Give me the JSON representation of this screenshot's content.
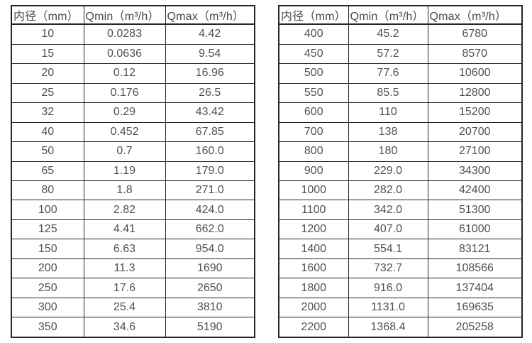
{
  "colors": {
    "background": "#ffffff",
    "border": "#262626",
    "header_text": "#48494e",
    "cell_text": "#505156"
  },
  "chart_data": [
    {
      "type": "table",
      "title": "",
      "columns": [
        "内径（mm）",
        "Qmin（m³/h）",
        "Qmax（m³/h）"
      ],
      "rows": [
        [
          "10",
          "0.0283",
          "4.42"
        ],
        [
          "15",
          "0.0636",
          "9.54"
        ],
        [
          "20",
          "0.12",
          "16.96"
        ],
        [
          "25",
          "0.176",
          "26.5"
        ],
        [
          "32",
          "0.29",
          "43.42"
        ],
        [
          "40",
          "0.452",
          "67.85"
        ],
        [
          "50",
          "0.7",
          "160.0"
        ],
        [
          "65",
          "1.19",
          "179.0"
        ],
        [
          "80",
          "1.8",
          "271.0"
        ],
        [
          "100",
          "2.82",
          "424.0"
        ],
        [
          "125",
          "4.41",
          "662.0"
        ],
        [
          "150",
          "6.63",
          "954.0"
        ],
        [
          "200",
          "11.3",
          "1690"
        ],
        [
          "250",
          "17.6",
          "2650"
        ],
        [
          "300",
          "25.4",
          "3810"
        ],
        [
          "350",
          "34.6",
          "5190"
        ]
      ]
    },
    {
      "type": "table",
      "title": "",
      "columns": [
        "内径（mm）",
        "Qmin（m³/h）",
        "Qmax（m³/h）"
      ],
      "rows": [
        [
          "400",
          "45.2",
          "6780"
        ],
        [
          "450",
          "57.2",
          "8570"
        ],
        [
          "500",
          "77.6",
          "10600"
        ],
        [
          "550",
          "85.5",
          "12800"
        ],
        [
          "600",
          "110",
          "15200"
        ],
        [
          "700",
          "138",
          "20700"
        ],
        [
          "800",
          "180",
          "27100"
        ],
        [
          "900",
          "229.0",
          "34300"
        ],
        [
          "1000",
          "282.0",
          "42400"
        ],
        [
          "1100",
          "342.0",
          "51300"
        ],
        [
          "1200",
          "407.0",
          "61000"
        ],
        [
          "1400",
          "554.1",
          "83121"
        ],
        [
          "1600",
          "732.7",
          "108566"
        ],
        [
          "1800",
          "916.0",
          "137404"
        ],
        [
          "2000",
          "1131.0",
          "169635"
        ],
        [
          "2200",
          "1368.4",
          "205258"
        ]
      ]
    }
  ]
}
